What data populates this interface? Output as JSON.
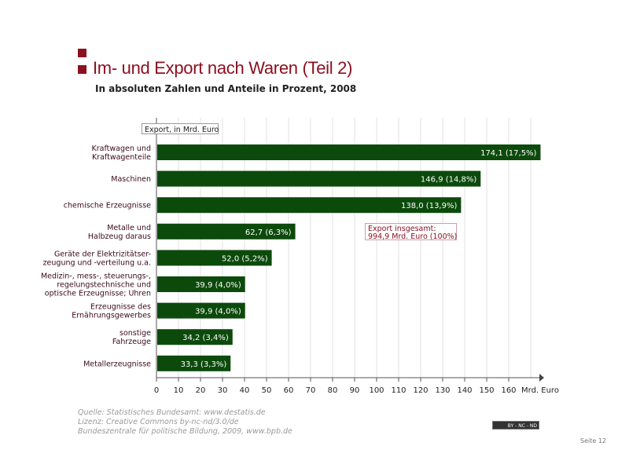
{
  "header": {
    "title": "Im- und Export nach Waren (Teil 2)",
    "subtitle": "In absoluten Zahlen und Anteile in Prozent, 2008"
  },
  "chart_data": {
    "type": "bar",
    "orientation": "horizontal",
    "series_label": "Export, in Mrd. Euro",
    "categories": [
      [
        "Kraftwagen und",
        "Kraftwagenteile"
      ],
      [
        "Maschinen"
      ],
      [
        "chemische Erzeugnisse"
      ],
      [
        "Metalle und",
        "Halbzeug daraus"
      ],
      [
        "Geräte der Elektrizitätser-",
        "zeugung und -verteilung u.a."
      ],
      [
        "Medizin-, mess-, steuerungs-,",
        "regelungstechnische und",
        "optische Erzeugnisse; Uhren"
      ],
      [
        "Erzeugnisse des",
        "Ernährungsgewerbes"
      ],
      [
        "sonstige",
        "Fahrzeuge"
      ],
      [
        "Metallerzeugnisse"
      ]
    ],
    "values": [
      174.1,
      146.9,
      138.0,
      62.7,
      52.0,
      39.9,
      39.9,
      34.2,
      33.3
    ],
    "data_labels": [
      "174,1 (17,5%)",
      "146,9 (14,8%)",
      "138,0 (13,9%)",
      "62,7 (6,3%)",
      "52,0 (5,2%)",
      "39,9 (4,0%)",
      "39,9 (4,0%)",
      "34,2 (3,4%)",
      "33,3 (3,3%)"
    ],
    "xticks": [
      0,
      10,
      20,
      30,
      40,
      50,
      60,
      70,
      80,
      90,
      100,
      110,
      120,
      130,
      140,
      150,
      160
    ],
    "xunit": "Mrd. Euro",
    "xlim": [
      0,
      175
    ],
    "grid": true,
    "annotation": [
      "Export insgesamt:",
      "994,9 Mrd. Euro (100%)"
    ],
    "bar_color": "#0c4a0c",
    "accent": "#8b1020"
  },
  "footer": {
    "source": "Quelle: Statistisches Bundesamt: www.destatis.de",
    "license": "Lizenz: Creative Commons by-nc-nd/3.0/de",
    "publisher": "Bundeszentrale für politische Bildung, 2009, www.bpb.de",
    "cc_badge": "BY - NC - ND",
    "page": "Seite 12"
  }
}
